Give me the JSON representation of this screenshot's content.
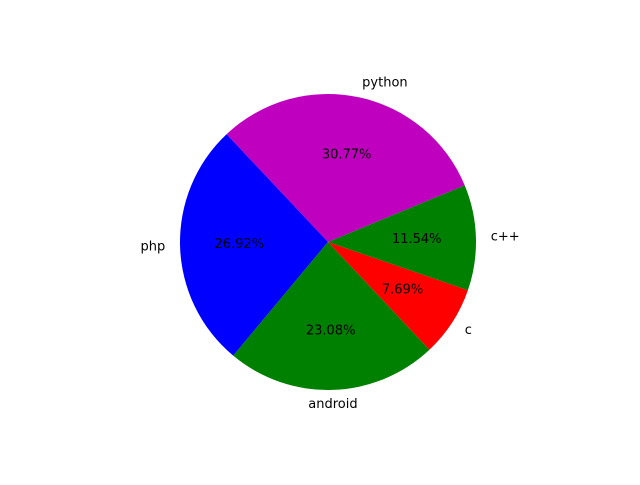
{
  "chart_data": {
    "type": "pie",
    "title": "",
    "labels": [
      "python",
      "php",
      "android",
      "c",
      "c++"
    ],
    "values": [
      30.77,
      26.92,
      23.08,
      7.69,
      11.54
    ],
    "percent_labels": [
      "30.77%",
      "26.92%",
      "23.08%",
      "7.69%",
      "11.54%"
    ],
    "colors": [
      "#bf00bf",
      "#0000ff",
      "#008000",
      "#ff0000",
      "#008000"
    ],
    "start_angle_deg": 22.5,
    "direction": "counterclockwise",
    "legend": "none"
  }
}
